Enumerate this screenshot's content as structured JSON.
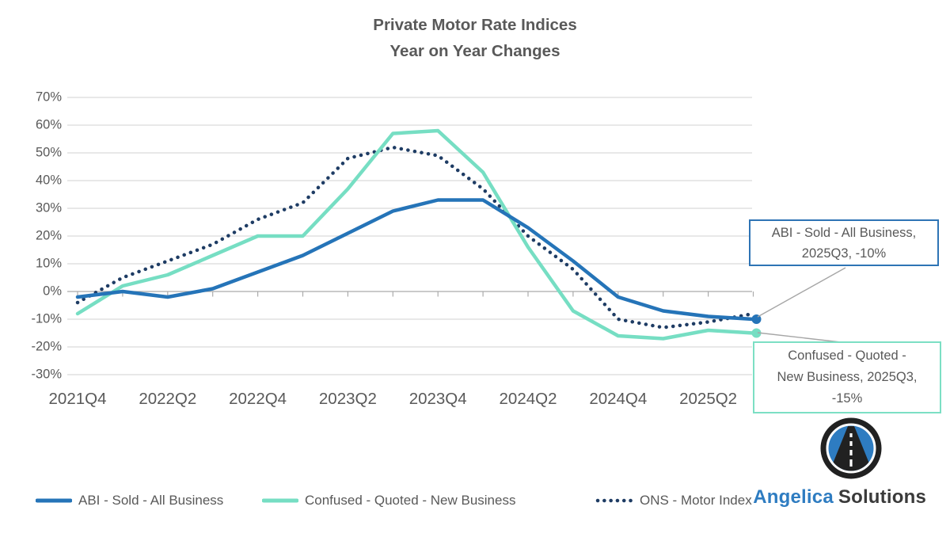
{
  "title": {
    "line1": "Private Motor Rate Indices",
    "line2": "Year on Year Changes"
  },
  "colors": {
    "abi_blue": "#2574B8",
    "confused_teal": "#76DEC3",
    "ons_navy": "#1E3C64",
    "grid_gray": "#DADADA",
    "axis_gray": "#ABABAB",
    "text_gray": "#595959",
    "leader_gray": "#A6A6A6",
    "callout_blue_border": "#2E74B5",
    "callout_teal_border": "#7CDFC4",
    "brand_blue": "#2E7CC1",
    "brand_dark": "#3A3A3A",
    "logo_dark": "#212121"
  },
  "chart_data": {
    "type": "line",
    "title": "Private Motor Rate Indices — Year on Year Changes",
    "x": [
      "2021Q4",
      "2022Q1",
      "2022Q2",
      "2022Q3",
      "2022Q4",
      "2023Q1",
      "2023Q2",
      "2023Q3",
      "2023Q4",
      "2024Q1",
      "2024Q2",
      "2024Q3",
      "2024Q4",
      "2025Q1",
      "2025Q2",
      "2025Q3"
    ],
    "x_labels_shown": [
      "2021Q4",
      "2022Q2",
      "2022Q4",
      "2023Q2",
      "2023Q4",
      "2024Q2",
      "2024Q4",
      "2025Q2"
    ],
    "y_tick_labels": [
      "70%",
      "60%",
      "50%",
      "40%",
      "30%",
      "20%",
      "10%",
      "0%",
      "-10%",
      "-20%",
      "-30%"
    ],
    "ylim": [
      -30,
      70
    ],
    "y_unit": "%",
    "grid": "horizontal-only",
    "legend_position": "bottom",
    "series": [
      {
        "name": "ABI - Sold - All Business",
        "style": "solid",
        "color_key": "abi_blue",
        "values": [
          -2,
          0,
          -2,
          1,
          7,
          13,
          21,
          29,
          33,
          33,
          23,
          11,
          -2,
          -7,
          -9,
          -10
        ]
      },
      {
        "name": "Confused - Quoted - New Business",
        "style": "solid",
        "color_key": "confused_teal",
        "values": [
          -8,
          2,
          6,
          13,
          20,
          20,
          37,
          57,
          58,
          43,
          16,
          -7,
          -16,
          -17,
          -14,
          -15
        ]
      },
      {
        "name": "ONS - Motor Index",
        "style": "dotted",
        "color_key": "ons_navy",
        "values": [
          -4,
          5,
          11,
          17,
          26,
          32,
          48,
          52,
          49,
          37,
          20,
          8,
          -10,
          -13,
          -11,
          -8
        ]
      }
    ],
    "end_markers": [
      {
        "series": "ABI - Sold - All Business",
        "x": "2025Q3",
        "value": -10
      },
      {
        "series": "Confused - Quoted - New Business",
        "x": "2025Q3",
        "value": -15
      }
    ]
  },
  "annotations": {
    "abi": {
      "lines": {
        "0": "ABI - Sold - All Business,",
        "1": "2025Q3, -10%"
      },
      "series": "ABI - Sold - All Business",
      "x": "2025Q3",
      "value": -10
    },
    "confused": {
      "lines": {
        "0": "Confused - Quoted -",
        "1": "New Business, 2025Q3,",
        "2": "-15%"
      },
      "series": "Confused - Quoted - New Business",
      "x": "2025Q3",
      "value": -15
    }
  },
  "legend": {
    "items": [
      {
        "label": "ABI - Sold - All Business",
        "swatch": "solid-line",
        "color_key": "abi_blue"
      },
      {
        "label": "Confused - Quoted - New Business",
        "swatch": "solid-line",
        "color_key": "confused_teal"
      },
      {
        "label": "ONS - Motor Index",
        "swatch": "dotted-line",
        "color_key": "ons_navy"
      }
    ]
  },
  "brand": {
    "name_primary": "Angelica",
    "name_secondary": "Solutions",
    "logo": "road-in-circle-icon"
  }
}
